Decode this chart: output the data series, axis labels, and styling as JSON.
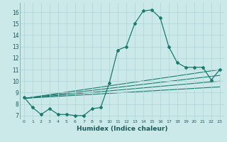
{
  "xlabel": "Humidex (Indice chaleur)",
  "bg_color": "#cce9e9",
  "grid_color": "#b0d8d8",
  "line_color": "#1a7a6e",
  "xlim": [
    -0.5,
    23.5
  ],
  "ylim": [
    6.7,
    16.8
  ],
  "xticks": [
    0,
    1,
    2,
    3,
    4,
    5,
    6,
    7,
    8,
    9,
    10,
    11,
    12,
    13,
    14,
    15,
    16,
    17,
    18,
    19,
    20,
    21,
    22,
    23
  ],
  "yticks": [
    7,
    8,
    9,
    10,
    11,
    12,
    13,
    14,
    15,
    16
  ],
  "main_curve_x": [
    0,
    1,
    2,
    3,
    4,
    5,
    6,
    7,
    8,
    9,
    10,
    11,
    12,
    13,
    14,
    15,
    16,
    17,
    18,
    19,
    20,
    21,
    22,
    23
  ],
  "main_curve_y": [
    8.6,
    7.7,
    7.1,
    7.6,
    7.1,
    7.1,
    7.0,
    7.0,
    7.6,
    7.7,
    9.8,
    12.7,
    13.0,
    15.0,
    16.1,
    16.2,
    15.5,
    13.0,
    11.6,
    11.2,
    11.2,
    11.2,
    10.1,
    11.0
  ],
  "line1_x": [
    0,
    23
  ],
  "line1_y": [
    8.5,
    11.0
  ],
  "line2_x": [
    0,
    23
  ],
  "line2_y": [
    8.5,
    10.5
  ],
  "line3_x": [
    0,
    23
  ],
  "line3_y": [
    8.5,
    10.0
  ],
  "line4_x": [
    0,
    23
  ],
  "line4_y": [
    8.5,
    9.5
  ]
}
